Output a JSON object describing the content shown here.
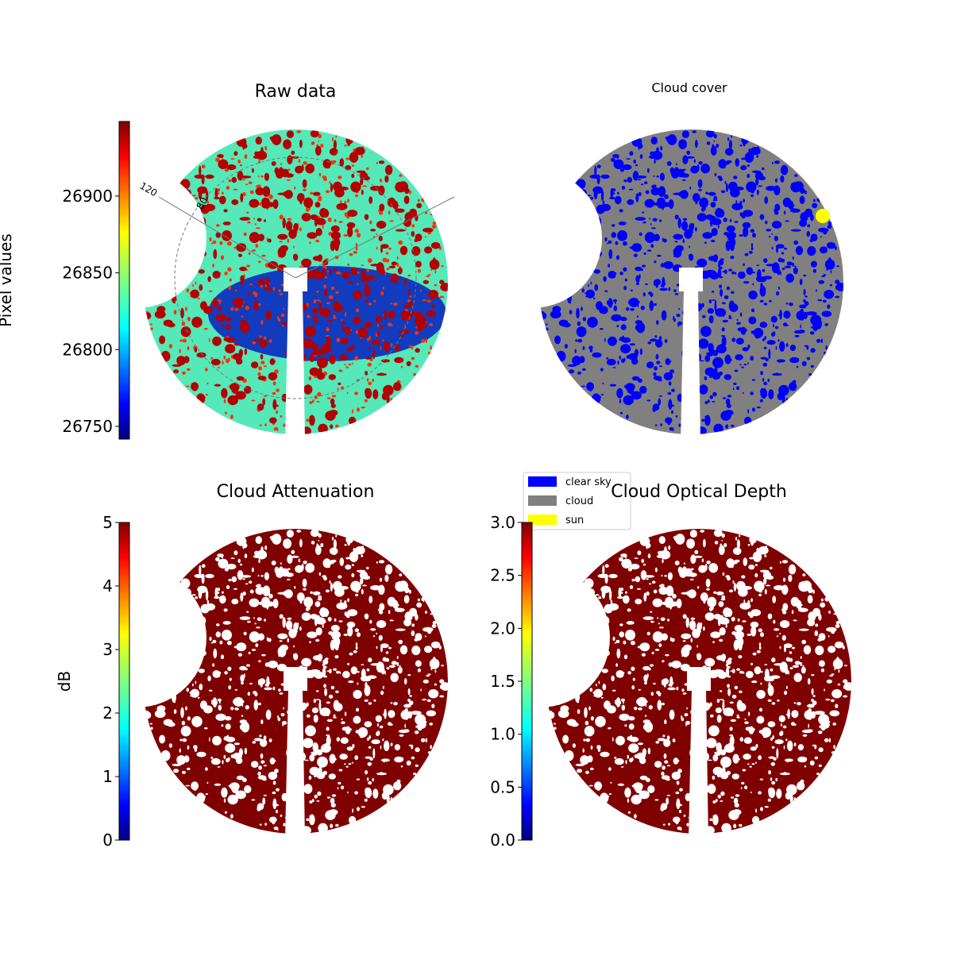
{
  "chart_data": [
    {
      "type": "image",
      "title": "Raw data",
      "colorbar_label": "Pixel values",
      "ylim": [
        26741.7,
        26948.6
      ],
      "yticks": [
        26750,
        26800,
        26850,
        26900
      ],
      "annotations": [
        "120",
        "80"
      ]
    },
    {
      "type": "image",
      "title": "Cloud cover",
      "series": [
        {
          "name": "clear sky",
          "color": "#0000ff"
        },
        {
          "name": "cloud",
          "color": "#808080"
        },
        {
          "name": "sun",
          "color": "#ffff00"
        }
      ]
    },
    {
      "type": "image",
      "title": "Cloud Attenuation",
      "colorbar_label": "dB",
      "ylim": [
        0,
        5
      ],
      "yticks": [
        0,
        1,
        2,
        3,
        4,
        5
      ]
    },
    {
      "type": "image",
      "title": "Cloud Optical Depth",
      "ylim": [
        0,
        3
      ],
      "yticks": [
        {
          "value": 0,
          "label": "0.0"
        },
        0.5,
        {
          "value": 1,
          "label": "1.0"
        },
        1.5,
        {
          "value": 2,
          "label": "2.0"
        },
        2.5,
        {
          "value": 3,
          "label": "3.0"
        }
      ]
    }
  ]
}
